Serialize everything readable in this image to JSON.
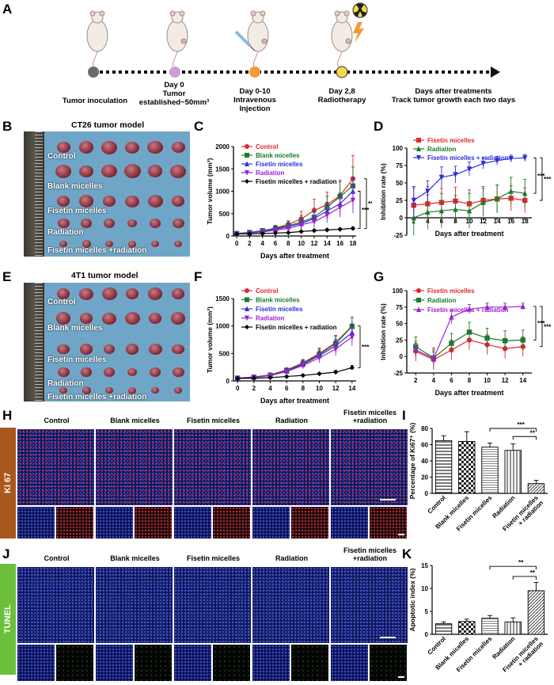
{
  "panels": {
    "A": "A",
    "B": "B",
    "C": "C",
    "D": "D",
    "E": "E",
    "F": "F",
    "G": "G",
    "H": "H",
    "I": "I",
    "J": "J",
    "K": "K"
  },
  "timeline": {
    "steps": [
      {
        "lines": [
          "Tumor inoculation"
        ],
        "color": "#6b6b6b"
      },
      {
        "lines": [
          "Day 0",
          "Tumor",
          "established~50mm³"
        ],
        "color": "#c9a0d6"
      },
      {
        "lines": [
          "Day 0-10",
          "Intravenous",
          "Injection"
        ],
        "color": "#f29a35"
      },
      {
        "lines": [
          "Day 2,8",
          "Radiotherapy"
        ],
        "color": "#f4d94a"
      },
      {
        "lines": [
          "Days after treatments",
          "Track tumor growth each two days"
        ],
        "color": ""
      }
    ]
  },
  "photoB": {
    "title": "CT26 tumor model",
    "rows": [
      "Control",
      "Blank micelles",
      "Fisetin micelles",
      "Radiation",
      "Fisetin micelles +radiation"
    ]
  },
  "photoE": {
    "title": "4T1 tumor model",
    "rows": [
      "Control",
      "Blank micelles",
      "Fisetin micelles",
      "Radiation",
      "Fisetin micelles +radiation"
    ]
  },
  "colors": {
    "control": "#e3262b",
    "blank": "#1b7a2a",
    "fisetin": "#2e2ee0",
    "radiation": "#a020d0",
    "combo": "#000000",
    "ki67": "#a9581c",
    "tunel": "#6cbf3b"
  },
  "chart_data": [
    {
      "id": "C",
      "type": "line",
      "xlabel": "Days after treatment",
      "ylabel": "Tumor volume (mm³)",
      "xticks": [
        0,
        2,
        4,
        6,
        8,
        10,
        12,
        14,
        16,
        18
      ],
      "ylim": [
        0,
        2000
      ],
      "yticks": [
        0,
        500,
        1000,
        1500,
        2000
      ],
      "significance": [
        "***",
        "***"
      ],
      "series": [
        {
          "name": "Control",
          "color": "#e3262b",
          "marker": "circle",
          "x": [
            0,
            2,
            4,
            6,
            8,
            10,
            12,
            14,
            16,
            18
          ],
          "y": [
            55,
            75,
            110,
            180,
            260,
            380,
            570,
            700,
            900,
            1280
          ],
          "err": [
            20,
            25,
            40,
            60,
            80,
            170,
            250,
            280,
            350,
            520
          ]
        },
        {
          "name": "Blank micelles",
          "color": "#1b7a2a",
          "marker": "square",
          "x": [
            0,
            2,
            4,
            6,
            8,
            10,
            12,
            14,
            16,
            18
          ],
          "y": [
            55,
            80,
            120,
            170,
            230,
            310,
            420,
            640,
            880,
            1120
          ],
          "err": [
            20,
            30,
            45,
            60,
            100,
            150,
            200,
            250,
            330,
            420
          ]
        },
        {
          "name": "Fisetin micelles",
          "color": "#2e2ee0",
          "marker": "triangle",
          "x": [
            0,
            2,
            4,
            6,
            8,
            10,
            12,
            14,
            16,
            18
          ],
          "y": [
            50,
            70,
            100,
            150,
            210,
            280,
            390,
            560,
            720,
            1000
          ],
          "err": [
            15,
            25,
            35,
            50,
            80,
            120,
            160,
            190,
            240,
            300
          ]
        },
        {
          "name": "Radiation",
          "color": "#a020d0",
          "marker": "tri-down",
          "x": [
            0,
            2,
            4,
            6,
            8,
            10,
            12,
            14,
            16,
            18
          ],
          "y": [
            50,
            65,
            90,
            130,
            170,
            250,
            320,
            470,
            640,
            800
          ],
          "err": [
            15,
            20,
            30,
            40,
            60,
            90,
            140,
            180,
            220,
            290
          ]
        },
        {
          "name": "Fisetin micelles + radiation",
          "color": "#000000",
          "marker": "diamond",
          "x": [
            0,
            2,
            4,
            6,
            8,
            10,
            12,
            14,
            16,
            18
          ],
          "y": [
            45,
            50,
            55,
            65,
            75,
            100,
            120,
            135,
            150,
            170
          ],
          "err": [
            10,
            10,
            12,
            15,
            15,
            20,
            25,
            25,
            25,
            30
          ]
        }
      ]
    },
    {
      "id": "D",
      "type": "line",
      "xlabel": "Days after treatment",
      "ylabel": "Inhibition rate (%)",
      "xticks": [
        2,
        4,
        6,
        8,
        10,
        12,
        14,
        16,
        18
      ],
      "ylim": [
        -25,
        100
      ],
      "yticks": [
        -25,
        0,
        25,
        50,
        75,
        100
      ],
      "significance": [
        "***",
        "***"
      ],
      "series": [
        {
          "name": "Fisetin micelles",
          "color": "#e3262b",
          "marker": "square",
          "x": [
            2,
            4,
            6,
            8,
            10,
            12,
            14,
            16,
            18
          ],
          "y": [
            18,
            20,
            22,
            24,
            20,
            25,
            27,
            28,
            25
          ],
          "err": [
            25,
            25,
            20,
            20,
            20,
            20,
            20,
            18,
            18
          ]
        },
        {
          "name": "Radiation",
          "color": "#1b7a2a",
          "marker": "triangle",
          "x": [
            2,
            4,
            6,
            8,
            10,
            12,
            14,
            16,
            18
          ],
          "y": [
            0,
            8,
            10,
            12,
            10,
            22,
            27,
            38,
            35
          ],
          "err": [
            25,
            25,
            25,
            20,
            25,
            20,
            20,
            20,
            20
          ]
        },
        {
          "name": "Fisetin micelles + radiation",
          "color": "#2e2ee0",
          "marker": "tri-down",
          "x": [
            2,
            4,
            6,
            8,
            10,
            12,
            14,
            16,
            18
          ],
          "y": [
            25,
            38,
            58,
            62,
            70,
            78,
            82,
            85,
            86
          ],
          "err": [
            20,
            15,
            15,
            12,
            10,
            8,
            6,
            5,
            5
          ]
        }
      ]
    },
    {
      "id": "F",
      "type": "line",
      "xlabel": "Days after treatment",
      "ylabel": "Tumor volume (mm³)",
      "xticks": [
        0,
        2,
        4,
        6,
        8,
        10,
        12,
        14
      ],
      "ylim": [
        0,
        1500
      ],
      "yticks": [
        0,
        500,
        1000,
        1500
      ],
      "significance": [
        "***"
      ],
      "series": [
        {
          "name": "Control",
          "color": "#e3262b",
          "marker": "circle",
          "x": [
            0,
            2,
            4,
            6,
            8,
            10,
            12,
            14
          ],
          "y": [
            50,
            70,
            110,
            200,
            330,
            500,
            700,
            1000
          ],
          "err": [
            10,
            15,
            25,
            40,
            60,
            100,
            130,
            160
          ]
        },
        {
          "name": "Blank micelles",
          "color": "#1b7a2a",
          "marker": "square",
          "x": [
            0,
            2,
            4,
            6,
            8,
            10,
            12,
            14
          ],
          "y": [
            50,
            70,
            105,
            190,
            320,
            480,
            680,
            990
          ],
          "err": [
            10,
            15,
            25,
            40,
            60,
            100,
            130,
            170
          ]
        },
        {
          "name": "Fisetin micelles",
          "color": "#2e2ee0",
          "marker": "triangle",
          "x": [
            0,
            2,
            4,
            6,
            8,
            10,
            12,
            14
          ],
          "y": [
            50,
            68,
            100,
            180,
            300,
            460,
            640,
            880
          ],
          "err": [
            10,
            15,
            25,
            40,
            60,
            90,
            120,
            160
          ]
        },
        {
          "name": "Radiation",
          "color": "#a020d0",
          "marker": "tri-down",
          "x": [
            0,
            2,
            4,
            6,
            8,
            10,
            12,
            14
          ],
          "y": [
            50,
            65,
            95,
            170,
            280,
            420,
            580,
            800
          ],
          "err": [
            10,
            15,
            20,
            40,
            60,
            90,
            120,
            160
          ]
        },
        {
          "name": "Fisetin micelles + radiation",
          "color": "#000000",
          "marker": "diamond",
          "x": [
            0,
            2,
            4,
            6,
            8,
            10,
            12,
            14
          ],
          "y": [
            45,
            50,
            60,
            80,
            100,
            130,
            160,
            240
          ],
          "err": [
            10,
            10,
            10,
            15,
            15,
            20,
            30,
            40
          ]
        }
      ]
    },
    {
      "id": "G",
      "type": "line",
      "xlabel": "Days after treatment",
      "ylabel": "Inhibition rate (%)",
      "xticks": [
        2,
        4,
        6,
        8,
        10,
        12,
        14
      ],
      "ylim": [
        -25,
        100
      ],
      "yticks": [
        -25,
        0,
        25,
        50,
        75,
        100
      ],
      "significance": [
        "***",
        "***"
      ],
      "series": [
        {
          "name": "Fisetin micelles",
          "color": "#e3262b",
          "marker": "circle",
          "x": [
            2,
            4,
            6,
            8,
            10,
            12,
            14
          ],
          "y": [
            8,
            -5,
            10,
            25,
            18,
            12,
            15
          ],
          "err": [
            15,
            15,
            15,
            15,
            15,
            15,
            15
          ]
        },
        {
          "name": "Radiation",
          "color": "#1b7a2a",
          "marker": "square",
          "x": [
            2,
            4,
            6,
            8,
            10,
            12,
            14
          ],
          "y": [
            15,
            -2,
            20,
            37,
            28,
            24,
            25
          ],
          "err": [
            15,
            15,
            15,
            15,
            15,
            15,
            15
          ]
        },
        {
          "name": "Fisetin micelles + radiation",
          "color": "#a020d0",
          "marker": "triangle",
          "x": [
            2,
            4,
            6,
            8,
            10,
            12,
            14
          ],
          "y": [
            10,
            -3,
            60,
            72,
            75,
            75,
            76
          ],
          "err": [
            10,
            10,
            10,
            7,
            6,
            6,
            5
          ]
        }
      ]
    },
    {
      "id": "I",
      "type": "bar",
      "ylabel": "Percentage of Ki67⁺ (%)",
      "ylim": [
        0,
        80
      ],
      "yticks": [
        0,
        20,
        40,
        60,
        80
      ],
      "categories": [
        "Control",
        "Blank micelles",
        "Fisetin micelles",
        "Radiation",
        "Fisetin micelles + radiation"
      ],
      "values": [
        65,
        64,
        57,
        53,
        12
      ],
      "err": [
        6,
        12,
        5,
        8,
        4
      ],
      "significance": [
        "***",
        "**"
      ]
    },
    {
      "id": "K",
      "type": "bar",
      "ylabel": "Apoptotic index (%)",
      "ylim": [
        0,
        15
      ],
      "yticks": [
        0,
        5,
        10,
        15
      ],
      "categories": [
        "Control",
        "Blank micelles",
        "Fisetin micelles",
        "Radiation",
        "Fisetin micelles + radiation"
      ],
      "values": [
        2.3,
        2.8,
        3.5,
        2.7,
        9.5
      ],
      "err": [
        0.4,
        0.5,
        0.6,
        0.9,
        1.8
      ],
      "significance": [
        "**",
        "**"
      ]
    }
  ],
  "micro": {
    "headers": [
      "Control",
      "Blank micelles",
      "Fisetin micelles",
      "Radiation",
      "Fisetin micelles +radiation"
    ],
    "ki67_label": "Ki 67",
    "tunel_label": "TUNEL"
  }
}
